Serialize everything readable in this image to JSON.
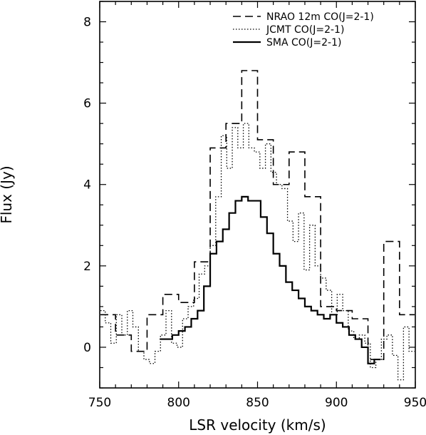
{
  "chart_data": {
    "type": "line",
    "step": true,
    "xlabel": "LSR velocity (km/s)",
    "ylabel": "Flux (Jy)",
    "xlim": [
      750,
      950
    ],
    "ylim": [
      -1,
      8.5
    ],
    "x_ticks": [
      750,
      800,
      850,
      900,
      950
    ],
    "y_ticks": [
      0,
      2,
      4,
      6,
      8
    ],
    "grid": false,
    "legend_position": "top-right",
    "series": [
      {
        "name": "NRAO 12m CO(J=2-1)",
        "style": "dashed",
        "step_width": 10,
        "x": [
          750,
          760,
          770,
          780,
          790,
          800,
          810,
          820,
          830,
          840,
          850,
          860,
          870,
          880,
          890,
          900,
          910,
          920,
          930,
          940,
          950
        ],
        "y": [
          0.8,
          0.3,
          -0.1,
          0.8,
          1.3,
          1.1,
          2.1,
          4.9,
          5.5,
          6.8,
          5.1,
          4.0,
          4.8,
          3.7,
          1.0,
          0.9,
          0.7,
          -0.3,
          2.6,
          0.8,
          0.8
        ]
      },
      {
        "name": "JCMT CO(J=2-1)",
        "style": "dotted",
        "step_width": 3.5,
        "x": [
          750,
          753.5,
          757,
          760.5,
          764,
          767.5,
          771,
          774.5,
          778,
          781.5,
          785,
          788.5,
          792,
          795.5,
          799,
          802.5,
          806,
          809.5,
          813,
          816.5,
          820,
          823.5,
          827,
          830.5,
          834,
          837.5,
          841,
          844.5,
          848,
          851.5,
          855,
          858.5,
          862,
          865.5,
          869,
          872.5,
          876,
          879.5,
          883,
          886.5,
          890,
          893.5,
          897,
          900.5,
          904,
          907.5,
          911,
          914.5,
          918,
          921.5,
          925,
          928.5,
          932,
          935.5,
          939,
          942.5,
          946
        ],
        "y": [
          0.9,
          0.6,
          0.1,
          0.8,
          0.3,
          0.9,
          0.5,
          -0.1,
          -0.3,
          -0.4,
          -0.1,
          0.3,
          0.9,
          0.1,
          0.0,
          0.7,
          1.0,
          1.2,
          1.8,
          2.0,
          2.5,
          3.7,
          5.2,
          4.4,
          5.4,
          4.9,
          5.5,
          4.9,
          4.8,
          4.4,
          5.0,
          4.3,
          4.0,
          3.9,
          3.1,
          2.6,
          3.3,
          1.9,
          3.0,
          2.0,
          1.7,
          1.4,
          0.8,
          1.3,
          0.9,
          0.4,
          0.2,
          0.3,
          0.1,
          -0.5,
          -0.3,
          0.2,
          0.3,
          -0.2,
          -0.8,
          0.5,
          -0.1
        ]
      },
      {
        "name": "SMA CO(J=2-1)",
        "style": "solid",
        "step_width": 4,
        "x": [
          788,
          792,
          796,
          800,
          804,
          808,
          812,
          816,
          820,
          824,
          828,
          832,
          836,
          840,
          844,
          848,
          852,
          856,
          860,
          864,
          868,
          872,
          876,
          880,
          884,
          888,
          892,
          896,
          900,
          904,
          908,
          912,
          916,
          920,
          924
        ],
        "y": [
          0.2,
          0.2,
          0.3,
          0.4,
          0.5,
          0.7,
          0.9,
          1.5,
          2.3,
          2.6,
          2.9,
          3.3,
          3.6,
          3.7,
          3.6,
          3.6,
          3.2,
          2.8,
          2.3,
          2.0,
          1.6,
          1.4,
          1.2,
          1.0,
          0.9,
          0.8,
          0.7,
          0.8,
          0.6,
          0.5,
          0.3,
          0.2,
          0.0,
          -0.4,
          -0.3
        ]
      }
    ]
  }
}
